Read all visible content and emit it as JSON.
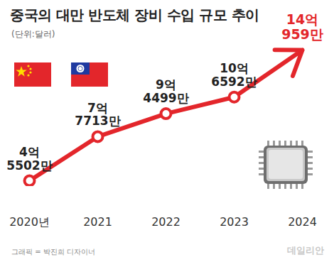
{
  "chart_data": {
    "type": "line",
    "title": "중국의 대만 반도체 장비 수입 규모 추이",
    "subtitle": "(단위:달러)",
    "categories": [
      "2020년",
      "2021",
      "2022",
      "2023",
      "2024"
    ],
    "values": [
      455020000,
      777130000,
      944990000,
      1065920000,
      1409590000
    ],
    "value_labels": [
      "4억 5502만",
      "7억 7713만",
      "9억 4499만",
      "10억 6592만",
      "14억 959만"
    ],
    "color": "#e3262b",
    "marker": "circle",
    "line_style": "arrow",
    "data_labels": true,
    "tick_labels": "x",
    "credit": "그래픽 = 박진희 디자이너",
    "source": "데일리안"
  }
}
